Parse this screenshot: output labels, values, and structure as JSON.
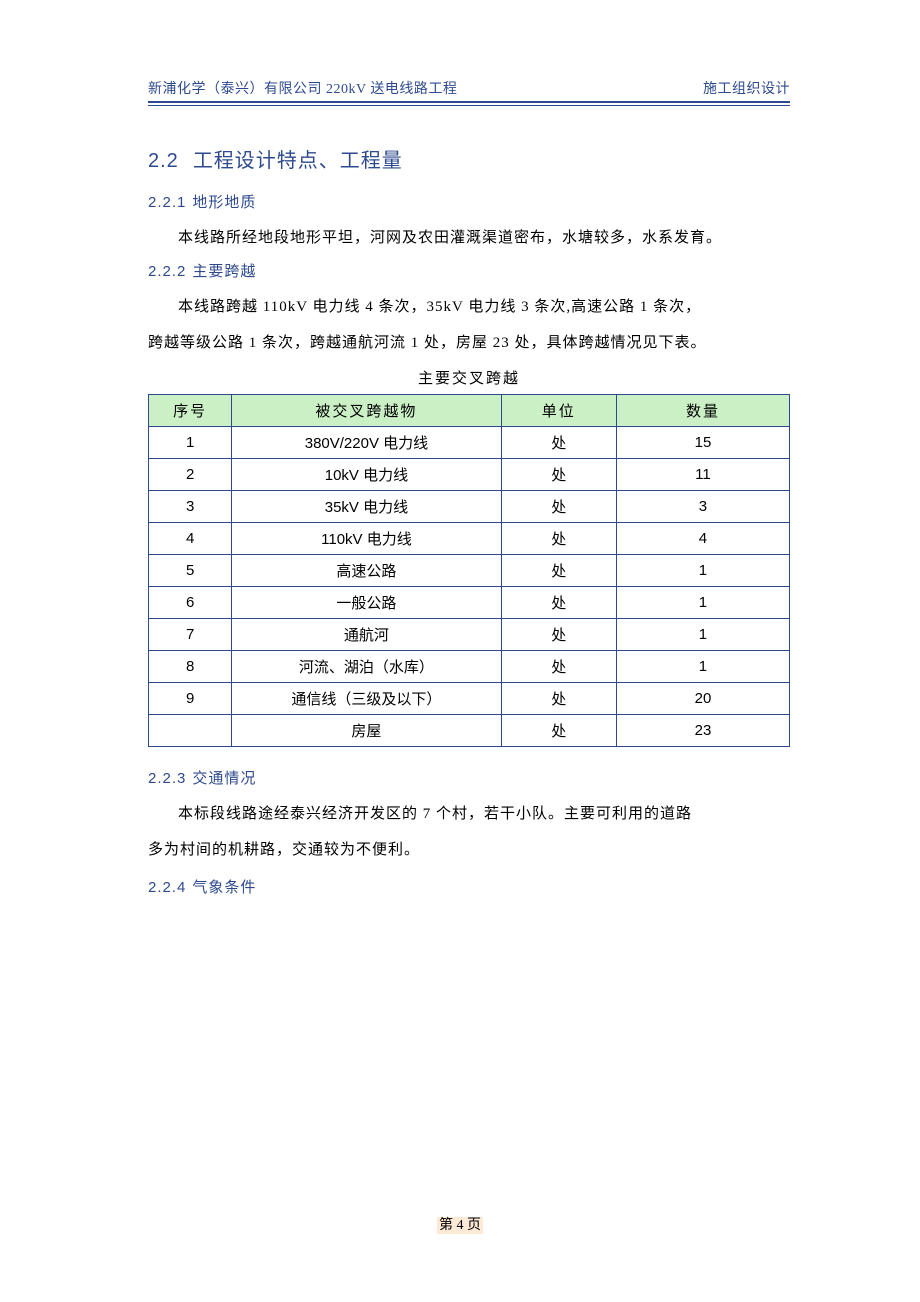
{
  "header": {
    "left": "新浦化学（泰兴）有限公司 220kV 送电线路工程",
    "right": "施工组织设计"
  },
  "section": {
    "number": "2.2",
    "title": "工程设计特点、工程量"
  },
  "sub1": {
    "number": "2.2.1",
    "title": "地形地质",
    "para": "本线路所经地段地形平坦，河网及农田灌溉渠道密布，水塘较多，水系发育。"
  },
  "sub2": {
    "number": "2.2.2",
    "title": "主要跨越",
    "para1": "本线路跨越 110kV 电力线 4 条次，35kV 电力线 3 条次,高速公路 1 条次，",
    "para2": "跨越等级公路 1 条次，跨越通航河流 1 处，房屋 23 处，具体跨越情况见下表。"
  },
  "table": {
    "caption": "主要交叉跨越",
    "headers": {
      "seq": "序号",
      "item": "被交叉跨越物",
      "unit": "单位",
      "qty": "数量"
    },
    "rows": [
      {
        "seq": "1",
        "item": "380V/220V 电力线",
        "unit": "处",
        "qty": "15"
      },
      {
        "seq": "2",
        "item": "10kV 电力线",
        "unit": "处",
        "qty": "11"
      },
      {
        "seq": "3",
        "item": "35kV 电力线",
        "unit": "处",
        "qty": "3"
      },
      {
        "seq": "4",
        "item": "110kV 电力线",
        "unit": "处",
        "qty": "4"
      },
      {
        "seq": "5",
        "item": "高速公路",
        "unit": "处",
        "qty": "1"
      },
      {
        "seq": "6",
        "item": "一般公路",
        "unit": "处",
        "qty": "1"
      },
      {
        "seq": "7",
        "item": "通航河",
        "unit": "处",
        "qty": "1"
      },
      {
        "seq": "8",
        "item": "河流、湖泊（水库）",
        "unit": "处",
        "qty": "1"
      },
      {
        "seq": "9",
        "item": "通信线（三级及以下）",
        "unit": "处",
        "qty": "20"
      },
      {
        "seq": "",
        "item": "房屋",
        "unit": "处",
        "qty": "23"
      }
    ]
  },
  "sub3": {
    "number": "2.2.3",
    "title": "交通情况",
    "para1": "本标段线路途经泰兴经济开发区的 7 个村，若干小队。主要可利用的道路",
    "para2": "多为村间的机耕路，交通较为不便利。"
  },
  "sub4": {
    "number": "2.2.4",
    "title": "气象条件"
  },
  "footer": {
    "text": "第 4 页"
  }
}
